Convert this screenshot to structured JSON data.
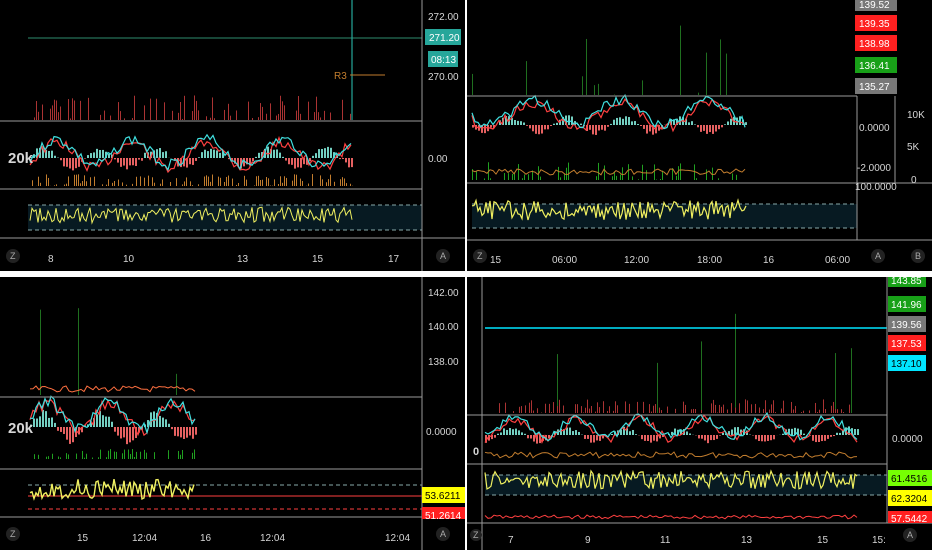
{
  "chart_data": [
    {
      "type": "line",
      "price_ticks": [
        "272.00",
        "270.00",
        "0.00"
      ],
      "price_tags": [
        {
          "text": "271.20",
          "bg": "#26a69a",
          "fg": "#ffffff"
        },
        {
          "text": "08:13",
          "bg": "#26a69a",
          "fg": "#ffffff"
        }
      ],
      "annotations": [
        "R3",
        "20k"
      ],
      "x_tick_labels": [
        "8",
        "10",
        "13",
        "15",
        "17"
      ],
      "corner_left": "Z",
      "corner_right": "A"
    },
    {
      "type": "line",
      "price_tags": [
        {
          "text": "139.52",
          "bg": "#787878",
          "fg": "#ffffff"
        },
        {
          "text": "139.35",
          "bg": "#ff2020",
          "fg": "#ffffff"
        },
        {
          "text": "138.98",
          "bg": "#ff2020",
          "fg": "#ffffff"
        },
        {
          "text": "136.41",
          "bg": "#18a018",
          "fg": "#ffffff"
        },
        {
          "text": "135.27",
          "bg": "#787878",
          "fg": "#ffffff"
        }
      ],
      "mid_ticks": [
        "0.0000",
        "-2.0000",
        "100.0000"
      ],
      "volume_ticks": [
        "10K",
        "5K",
        "0"
      ],
      "x_tick_labels": [
        "15",
        "06:00",
        "12:00",
        "18:00",
        "16",
        "06:00"
      ],
      "corner_left": "Z",
      "corner_right": "A",
      "corner_extra": "B"
    },
    {
      "type": "line",
      "price_ticks": [
        "142.00",
        "140.00",
        "138.00",
        "0.0000"
      ],
      "price_tags": [
        {
          "text": "53.6211",
          "bg": "#ffff00",
          "fg": "#000000"
        },
        {
          "text": "51.2614",
          "bg": "#ff2020",
          "fg": "#ffffff"
        }
      ],
      "annotations": [
        "20k"
      ],
      "x_tick_labels": [
        "15",
        "12:04",
        "16",
        "12:04",
        "12:04"
      ],
      "corner_left": "Z",
      "corner_right": "A"
    },
    {
      "type": "line",
      "price_tags": [
        {
          "text": "143.85",
          "bg": "#18a018",
          "fg": "#ffffff"
        },
        {
          "text": "141.96",
          "bg": "#18a018",
          "fg": "#ffffff"
        },
        {
          "text": "139.56",
          "bg": "#787878",
          "fg": "#ffffff"
        },
        {
          "text": "137.53",
          "bg": "#ff2020",
          "fg": "#ffffff"
        },
        {
          "text": "137.10",
          "bg": "#00e5ff",
          "fg": "#000000"
        },
        {
          "text": "61.4516",
          "bg": "#76ff03",
          "fg": "#000000"
        },
        {
          "text": "62.3204",
          "bg": "#ffff00",
          "fg": "#000000"
        },
        {
          "text": "57.5442",
          "bg": "#ff2020",
          "fg": "#ffffff"
        }
      ],
      "mid_ticks": [
        "0.0000"
      ],
      "annotations": [
        "0"
      ],
      "x_tick_labels": [
        "7",
        "9",
        "11",
        "13",
        "15",
        "15:"
      ],
      "corner_left": "Z",
      "corner_right": "A"
    }
  ]
}
